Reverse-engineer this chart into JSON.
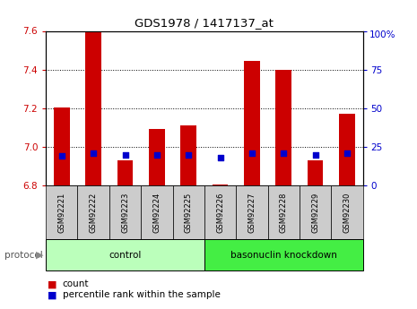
{
  "title": "GDS1978 / 1417137_at",
  "samples": [
    "GSM92221",
    "GSM92222",
    "GSM92223",
    "GSM92224",
    "GSM92225",
    "GSM92226",
    "GSM92227",
    "GSM92228",
    "GSM92229",
    "GSM92230"
  ],
  "count_values": [
    7.205,
    7.595,
    6.93,
    7.09,
    7.11,
    6.805,
    7.445,
    7.4,
    6.93,
    7.17
  ],
  "percentile_values": [
    19,
    21,
    20,
    20,
    20,
    18,
    21,
    21,
    20,
    21
  ],
  "ylim_left": [
    6.8,
    7.6
  ],
  "ylim_right": [
    0,
    100
  ],
  "yticks_left": [
    6.8,
    7.0,
    7.2,
    7.4,
    7.6
  ],
  "yticks_right": [
    0,
    25,
    50,
    75,
    100
  ],
  "groups": [
    {
      "label": "control",
      "indices": [
        0,
        1,
        2,
        3,
        4
      ],
      "color": "#bbffbb"
    },
    {
      "label": "basonuclin knockdown",
      "indices": [
        5,
        6,
        7,
        8,
        9
      ],
      "color": "#44ee44"
    }
  ],
  "bar_color": "#cc0000",
  "dot_color": "#0000cc",
  "bar_width": 0.5,
  "background_color": "#ffffff",
  "tick_color_left": "#cc0000",
  "tick_color_right": "#0000cc",
  "protocol_label": "protocol",
  "legend_count": "count",
  "legend_percentile": "percentile rank within the sample",
  "sample_box_color": "#cccccc",
  "grid_yticks": [
    7.0,
    7.2,
    7.4
  ]
}
